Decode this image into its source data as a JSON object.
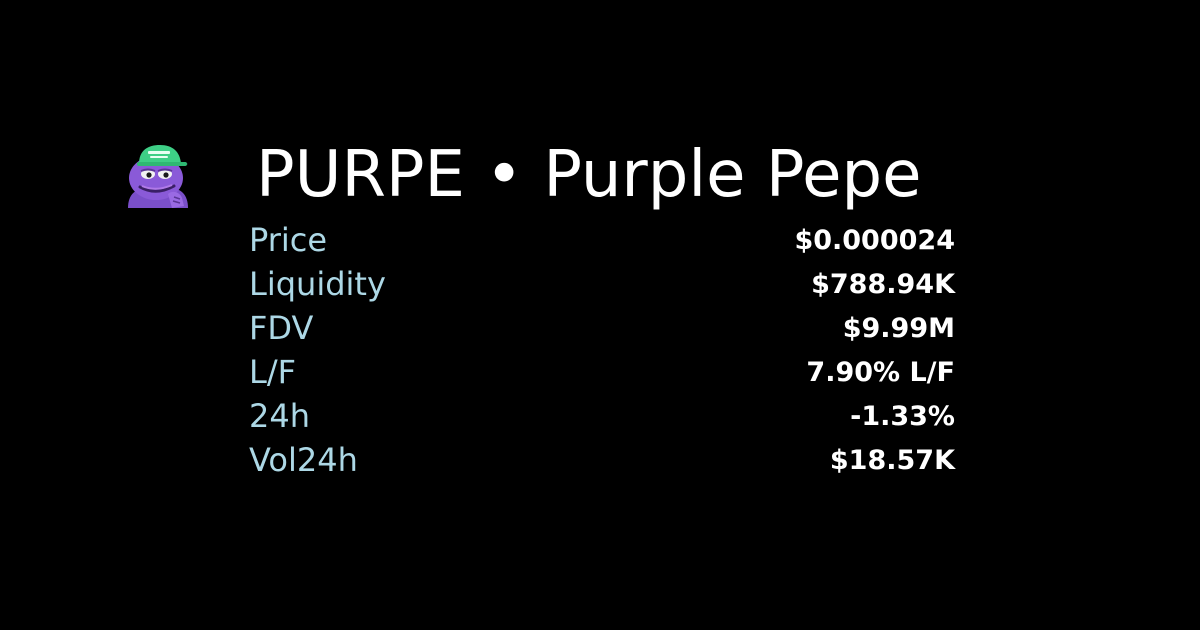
{
  "token": {
    "symbol_name": "PURPE • Purple Pepe",
    "logo_icon": "purple-pepe-frog-green-cap-icon"
  },
  "colors": {
    "background": "#000000",
    "title": "#ffffff",
    "label": "#add8e6",
    "value": "#ffffff"
  },
  "stats": [
    {
      "label": "Price",
      "value": "$0.000024"
    },
    {
      "label": "Liquidity",
      "value": "$788.94K"
    },
    {
      "label": "FDV",
      "value": "$9.99M"
    },
    {
      "label": "L/F",
      "value": "7.90% L/F"
    },
    {
      "label": "24h",
      "value": "-1.33%"
    },
    {
      "label": "Vol24h",
      "value": "$18.57K"
    }
  ]
}
